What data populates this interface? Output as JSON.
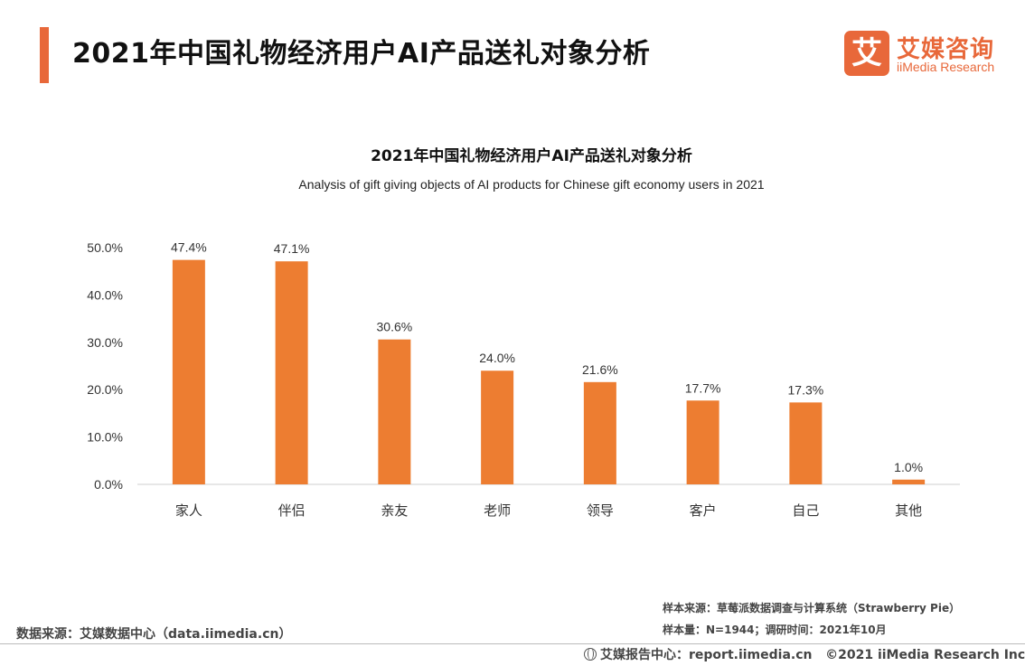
{
  "header": {
    "title": "2021年中国礼物经济用户AI产品送礼对象分析",
    "logo_cn": "艾媒咨询",
    "logo_en": "iiMedia Research",
    "logo_mark": "艾",
    "accent_color": "#e8683a"
  },
  "chart_data": {
    "type": "bar",
    "title": "2021年中国礼物经济用户AI产品送礼对象分析",
    "subtitle": "Analysis of gift giving objects of AI products for Chinese gift economy users in 2021",
    "categories": [
      "家人",
      "伴侣",
      "亲友",
      "老师",
      "领导",
      "客户",
      "自己",
      "其他"
    ],
    "values": [
      47.4,
      47.1,
      30.6,
      24.0,
      21.6,
      17.7,
      17.3,
      1.0
    ],
    "data_labels": [
      "47.4%",
      "47.1%",
      "30.6%",
      "24.0%",
      "21.6%",
      "17.7%",
      "17.3%",
      "1.0%"
    ],
    "y_ticks": [
      "0.0%",
      "10.0%",
      "20.0%",
      "30.0%",
      "40.0%",
      "50.0%"
    ],
    "ylim": [
      0,
      50
    ],
    "xlabel": "",
    "ylabel": "",
    "grid": false,
    "bar_color": "#ed7d31"
  },
  "footer": {
    "data_source": "数据来源：艾媒数据中心（data.iimedia.cn）",
    "sample_source": "样本来源：草莓派数据调查与计算系统（Strawberry Pie）",
    "sample_info": "样本量：N=1944；调研时间：2021年10月",
    "report_center": "艾媒报告中心：report.iimedia.cn",
    "copyright": "©2021  iiMedia Research  Inc"
  }
}
